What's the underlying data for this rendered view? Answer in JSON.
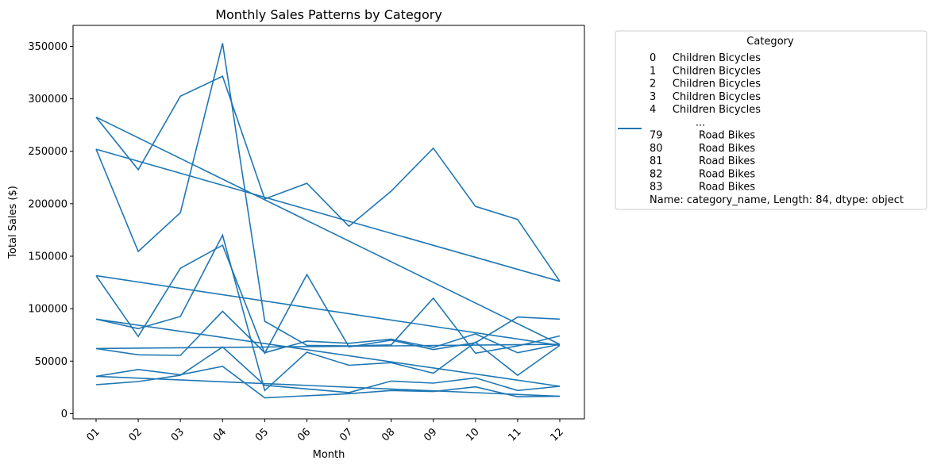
{
  "chart_data": {
    "type": "line",
    "title": "Monthly Sales Patterns by Category",
    "xlabel": "Month",
    "ylabel": "Total Sales ($)",
    "categories": [
      "01",
      "02",
      "03",
      "04",
      "05",
      "06",
      "07",
      "08",
      "09",
      "10",
      "11",
      "12"
    ],
    "yticks": [
      0,
      50000,
      100000,
      150000,
      200000,
      250000,
      300000,
      350000
    ],
    "ytick_labels": [
      "0",
      "50000",
      "100000",
      "150000",
      "200000",
      "250000",
      "300000",
      "350000"
    ],
    "ylim": [
      -5000,
      370000
    ],
    "grid": false,
    "color": "#1f77b4",
    "legend": {
      "title": "Category",
      "placement": "outside right",
      "lines": [
        "0     Children Bicycles",
        "1     Children Bicycles",
        "2     Children Bicycles",
        "3     Children Bicycles",
        "4     Children Bicycles",
        "              ...",
        "79           Road Bikes",
        "80           Road Bikes",
        "81           Road Bikes",
        "82           Road Bikes",
        "83           Road Bikes",
        "Name: category_name, Length: 84, dtype: object"
      ]
    },
    "series": [
      {
        "x": [
          "01",
          "02",
          "03",
          "04",
          "05",
          "06",
          "07",
          "08",
          "09",
          "10",
          "11",
          "12"
        ],
        "values": [
          27500,
          30500,
          36500,
          63500,
          27000,
          23500,
          20000,
          31000,
          29000,
          34000,
          22000,
          26000
        ]
      },
      {
        "x": [
          "01",
          "02",
          "03",
          "04",
          "05",
          "06",
          "07",
          "08",
          "09",
          "10",
          "11",
          "12"
        ],
        "values": [
          35500,
          42000,
          37000,
          45000,
          15000,
          17000,
          19000,
          22000,
          21000,
          25500,
          16000,
          16500
        ]
      },
      {
        "x": [
          "01",
          "02",
          "03",
          "04",
          "05",
          "06",
          "07",
          "08",
          "09",
          "10",
          "11",
          "12"
        ],
        "values": [
          62000,
          56000,
          55500,
          97500,
          58000,
          69000,
          67000,
          71000,
          63000,
          76000,
          58000,
          66000
        ]
      },
      {
        "x": [
          "01",
          "02",
          "03",
          "04",
          "05",
          "06",
          "07",
          "08",
          "09",
          "10",
          "11",
          "12"
        ],
        "values": [
          90000,
          81000,
          92500,
          170000,
          22000,
          58500,
          46000,
          48500,
          38500,
          68000,
          36500,
          65000
        ]
      },
      {
        "x": [
          "01",
          "02",
          "03",
          "04",
          "05",
          "06",
          "07",
          "08",
          "09",
          "10",
          "11",
          "12"
        ],
        "values": [
          131500,
          73500,
          138500,
          160500,
          57500,
          132500,
          63500,
          70000,
          61000,
          67500,
          92000,
          90000
        ]
      },
      {
        "x": [
          "01",
          "02",
          "03",
          "04",
          "05",
          "06",
          "07",
          "08",
          "09",
          "10",
          "11",
          "12"
        ],
        "values": [
          252000,
          154500,
          191500,
          353000,
          88000,
          65000,
          64500,
          65500,
          110000,
          57500,
          64500,
          74000
        ]
      },
      {
        "x": [
          "01",
          "02",
          "03",
          "04",
          "05",
          "06",
          "07",
          "08",
          "09",
          "10",
          "11",
          "12"
        ],
        "values": [
          282500,
          232500,
          302500,
          321500,
          204500,
          219500,
          178500,
          212000,
          253000,
          197500,
          185000,
          126000
        ]
      },
      {
        "x": [
          "01",
          "12"
        ],
        "values": [
          282500,
          66000
        ]
      },
      {
        "x": [
          "01",
          "12"
        ],
        "values": [
          252000,
          126000
        ]
      },
      {
        "x": [
          "01",
          "12"
        ],
        "values": [
          131500,
          65000
        ]
      },
      {
        "x": [
          "01",
          "12"
        ],
        "values": [
          90000,
          26000
        ]
      },
      {
        "x": [
          "01",
          "12"
        ],
        "values": [
          62000,
          66000
        ]
      },
      {
        "x": [
          "01",
          "12"
        ],
        "values": [
          35500,
          16500
        ]
      }
    ]
  }
}
